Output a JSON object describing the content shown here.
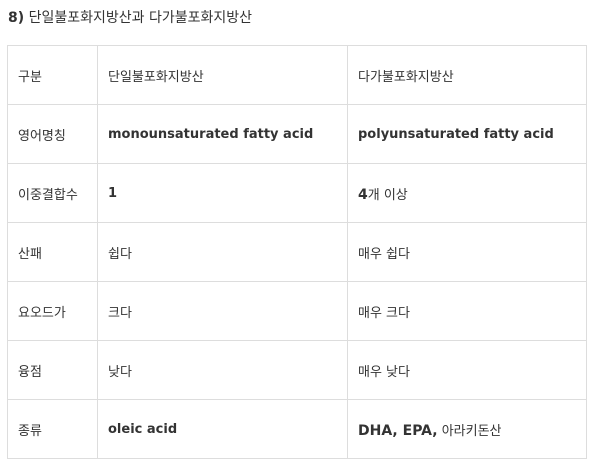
{
  "heading": {
    "number": "8)",
    "text": "단일불포화지방산과 다가불포화지방산"
  },
  "table": {
    "rows": [
      {
        "label": "구분",
        "mono": "단일불포화지방산",
        "poly": "다가불포화지방산"
      },
      {
        "label": "영어명칭",
        "mono": "monounsaturated fatty acid",
        "poly": "polyunsaturated fatty acid"
      },
      {
        "label": "이중결합수",
        "mono": "1",
        "poly_bold": "4",
        "poly_rest": "개 이상"
      },
      {
        "label": "산패",
        "mono": "쉽다",
        "poly": "매우 쉽다"
      },
      {
        "label": "요오드가",
        "mono": "크다",
        "poly": "매우 크다"
      },
      {
        "label": "융점",
        "mono": "낮다",
        "poly": "매우 낮다"
      },
      {
        "label": "종류",
        "mono": "oleic acid",
        "poly_bold": "DHA, EPA,",
        "poly_rest": " 아라키돈산"
      }
    ]
  }
}
